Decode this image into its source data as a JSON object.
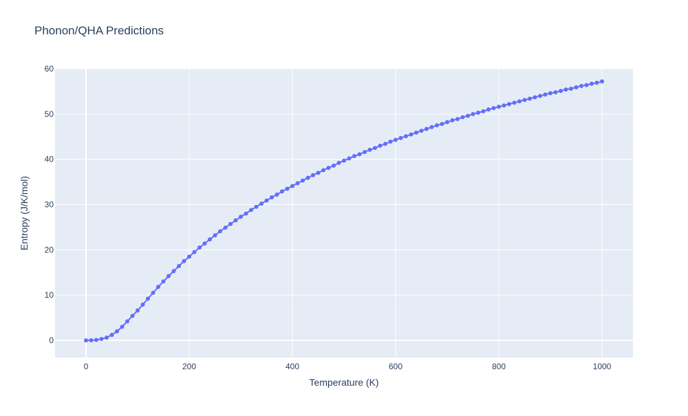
{
  "chart_data": {
    "type": "scatter",
    "mode": "lines+markers",
    "title": "Phonon/QHA Predictions",
    "xlabel": "Temperature (K)",
    "ylabel": "Entropy (J/K/mol)",
    "xlim": [
      -60,
      1060
    ],
    "ylim": [
      -3.8,
      60
    ],
    "xticks": [
      0,
      200,
      400,
      600,
      800,
      1000
    ],
    "yticks": [
      0,
      10,
      20,
      30,
      40,
      50,
      60
    ],
    "grid": true,
    "legend": "none",
    "colors": {
      "series": "#636efa",
      "plot_bg": "#e5ecf6",
      "grid": "#ffffff",
      "text": "#2a3f5f"
    },
    "series": [
      {
        "x": [
          0,
          10,
          20,
          30,
          40,
          50,
          60,
          70,
          80,
          90,
          100,
          110,
          120,
          130,
          140,
          150,
          160,
          170,
          180,
          190,
          200,
          210,
          220,
          230,
          240,
          250,
          260,
          270,
          280,
          290,
          300,
          310,
          320,
          330,
          340,
          350,
          360,
          370,
          380,
          390,
          400,
          410,
          420,
          430,
          440,
          450,
          460,
          470,
          480,
          490,
          500,
          510,
          520,
          530,
          540,
          550,
          560,
          570,
          580,
          590,
          600,
          610,
          620,
          630,
          640,
          650,
          660,
          670,
          680,
          690,
          700,
          710,
          720,
          730,
          740,
          750,
          760,
          770,
          780,
          790,
          800,
          810,
          820,
          830,
          840,
          850,
          860,
          870,
          880,
          890,
          900,
          910,
          920,
          930,
          940,
          950,
          960,
          970,
          980,
          990,
          1000
        ],
        "y": [
          0,
          0.02,
          0.1,
          0.3,
          0.6,
          1.2,
          2.0,
          3.0,
          4.2,
          5.4,
          6.6,
          7.9,
          9.2,
          10.5,
          11.8,
          13.0,
          14.2,
          15.3,
          16.4,
          17.5,
          18.5,
          19.5,
          20.5,
          21.4,
          22.3,
          23.2,
          24.1,
          24.9,
          25.7,
          26.5,
          27.3,
          28.0,
          28.8,
          29.5,
          30.2,
          30.9,
          31.6,
          32.2,
          32.9,
          33.5,
          34.1,
          34.7,
          35.3,
          35.9,
          36.5,
          37.0,
          37.6,
          38.1,
          38.6,
          39.2,
          39.7,
          40.2,
          40.7,
          41.1,
          41.6,
          42.1,
          42.5,
          43.0,
          43.4,
          43.9,
          44.3,
          44.7,
          45.1,
          45.5,
          45.9,
          46.3,
          46.7,
          47.1,
          47.5,
          47.8,
          48.2,
          48.6,
          48.9,
          49.3,
          49.6,
          50.0,
          50.3,
          50.6,
          51.0,
          51.3,
          51.6,
          51.9,
          52.2,
          52.5,
          52.8,
          53.1,
          53.4,
          53.7,
          54.0,
          54.3,
          54.6,
          54.8,
          55.1,
          55.4,
          55.6,
          55.9,
          56.2,
          56.4,
          56.7,
          56.9,
          57.2
        ]
      }
    ]
  }
}
